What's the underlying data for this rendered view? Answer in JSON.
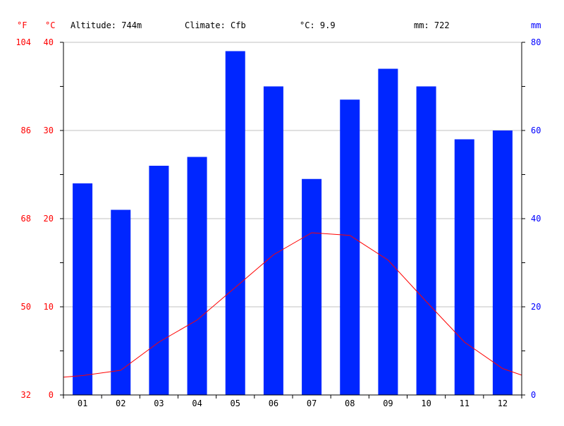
{
  "header": {
    "unit_f": "°F",
    "unit_c": "°C",
    "unit_mm": "mm",
    "altitude": "Altitude: 744m",
    "climate": "Climate: Cfb",
    "temp_avg": "°C: 9.9",
    "precip_total": "mm: 722"
  },
  "colors": {
    "bars": "#0026ff",
    "line": "#ff0000",
    "left_labels": "#ff0000",
    "right_labels": "#0000ff"
  },
  "chart_data": {
    "type": "bar",
    "categories": [
      "01",
      "02",
      "03",
      "04",
      "05",
      "06",
      "07",
      "08",
      "09",
      "10",
      "11",
      "12"
    ],
    "series": [
      {
        "type": "bar",
        "values": [
          48,
          42,
          52,
          54,
          78,
          70,
          49,
          67,
          74,
          70,
          58,
          60
        ]
      },
      {
        "type": "line",
        "values": [
          2.2,
          2.8,
          6.0,
          8.5,
          12.2,
          15.9,
          18.4,
          18.1,
          15.3,
          10.6,
          6.0,
          3.0
        ]
      }
    ],
    "left_axis_c": {
      "ticks": [
        0,
        10,
        20,
        30,
        40
      ],
      "range": [
        0,
        40
      ]
    },
    "left_axis_f": {
      "ticks": [
        32,
        50,
        68,
        86,
        104
      ]
    },
    "right_axis_mm": {
      "ticks": [
        0,
        20,
        40,
        60,
        80
      ],
      "range": [
        0,
        80
      ]
    },
    "grid": true
  }
}
